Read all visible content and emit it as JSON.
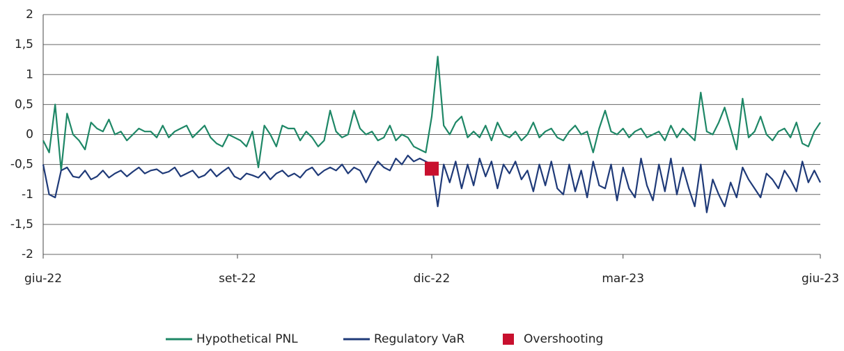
{
  "chart_data": {
    "type": "line",
    "x": [
      0,
      2,
      4,
      6,
      8,
      10,
      12,
      14,
      16,
      18,
      20,
      22,
      24,
      26,
      28,
      30,
      32,
      34,
      36,
      38,
      40,
      42,
      44,
      46,
      48,
      50,
      52,
      54,
      56,
      58,
      60,
      62,
      64,
      66,
      68,
      70,
      72,
      74,
      76,
      78,
      80,
      82,
      84,
      86,
      88,
      90,
      92,
      94,
      96,
      98,
      100,
      102,
      104,
      106,
      108,
      110,
      112,
      114,
      116,
      118,
      120,
      122,
      124,
      126,
      128,
      130,
      132,
      134,
      136,
      138,
      140,
      142,
      144,
      146,
      148,
      150,
      152,
      154,
      156,
      158,
      160,
      162,
      164,
      166,
      168,
      170,
      172,
      174,
      176,
      178,
      180,
      182,
      184,
      186,
      188,
      190,
      192,
      194,
      196,
      198,
      200,
      202,
      204,
      206,
      208,
      210,
      212,
      214,
      216,
      218,
      220,
      222,
      224,
      226,
      228,
      230,
      232,
      234,
      236,
      238,
      240,
      242,
      244,
      246,
      248,
      250,
      252,
      254,
      256,
      258,
      260
    ],
    "xlim": [
      0,
      260
    ],
    "xticks": [
      {
        "value": 0,
        "label": "giu-22"
      },
      {
        "value": 65,
        "label": "set-22"
      },
      {
        "value": 130,
        "label": "dic-22"
      },
      {
        "value": 194,
        "label": "mar-23"
      },
      {
        "value": 260,
        "label": "giu-23"
      }
    ],
    "ylim": [
      -2,
      2
    ],
    "yticks": [
      -2,
      {
        "value": -1.5,
        "label": "-1,5"
      },
      -1,
      {
        "value": -0.5,
        "label": "-0,5"
      },
      0,
      {
        "value": 0.5,
        "label": "0,5"
      },
      1,
      {
        "value": 1.5,
        "label": "1,5"
      },
      2
    ],
    "grid": true,
    "legend": "bottom",
    "series": [
      {
        "name": "Hypothetical PNL",
        "color": "#1e8766",
        "values": [
          -0.1,
          -0.3,
          0.5,
          -0.6,
          0.35,
          0.0,
          -0.1,
          -0.25,
          0.2,
          0.1,
          0.05,
          0.25,
          0.0,
          0.05,
          -0.1,
          0.0,
          0.1,
          0.05,
          0.05,
          -0.05,
          0.15,
          -0.05,
          0.05,
          0.1,
          0.15,
          -0.05,
          0.05,
          0.15,
          -0.05,
          -0.15,
          -0.2,
          0.0,
          -0.05,
          -0.1,
          -0.2,
          0.05,
          -0.55,
          0.15,
          0.0,
          -0.2,
          0.15,
          0.1,
          0.1,
          -0.1,
          0.05,
          -0.05,
          -0.2,
          -0.1,
          0.4,
          0.05,
          -0.05,
          0.0,
          0.4,
          0.1,
          0.0,
          0.05,
          -0.1,
          -0.05,
          0.15,
          -0.1,
          0.0,
          -0.05,
          -0.2,
          -0.25,
          -0.3,
          0.3,
          1.3,
          0.15,
          0.0,
          0.2,
          0.3,
          -0.05,
          0.05,
          -0.05,
          0.15,
          -0.1,
          0.2,
          0.0,
          -0.05,
          0.05,
          -0.1,
          0.0,
          0.2,
          -0.05,
          0.05,
          0.1,
          -0.05,
          -0.1,
          0.05,
          0.15,
          0.0,
          0.05,
          -0.3,
          0.1,
          0.4,
          0.05,
          0.0,
          0.1,
          -0.05,
          0.05,
          0.1,
          -0.05,
          0.0,
          0.05,
          -0.1,
          0.15,
          -0.05,
          0.1,
          0.0,
          -0.1,
          0.7,
          0.05,
          0.0,
          0.2,
          0.45,
          0.1,
          -0.25,
          0.6,
          -0.05,
          0.05,
          0.3,
          0.0,
          -0.1,
          0.05,
          0.1,
          -0.05,
          0.2,
          -0.15,
          -0.2,
          0.05,
          0.2
        ]
      },
      {
        "name": "Regulatory VaR",
        "color": "#1f3a78",
        "values": [
          -0.5,
          -1.0,
          -1.05,
          -0.6,
          -0.55,
          -0.7,
          -0.72,
          -0.6,
          -0.75,
          -0.7,
          -0.6,
          -0.72,
          -0.65,
          -0.6,
          -0.7,
          -0.62,
          -0.55,
          -0.65,
          -0.6,
          -0.58,
          -0.65,
          -0.62,
          -0.55,
          -0.7,
          -0.65,
          -0.6,
          -0.72,
          -0.68,
          -0.58,
          -0.7,
          -0.62,
          -0.55,
          -0.7,
          -0.75,
          -0.65,
          -0.68,
          -0.72,
          -0.62,
          -0.75,
          -0.65,
          -0.6,
          -0.7,
          -0.65,
          -0.72,
          -0.6,
          -0.55,
          -0.68,
          -0.6,
          -0.55,
          -0.6,
          -0.5,
          -0.65,
          -0.55,
          -0.6,
          -0.8,
          -0.6,
          -0.45,
          -0.55,
          -0.6,
          -0.4,
          -0.5,
          -0.35,
          -0.45,
          -0.4,
          -0.45,
          -0.5,
          -1.2,
          -0.5,
          -0.8,
          -0.45,
          -0.9,
          -0.5,
          -0.85,
          -0.4,
          -0.7,
          -0.45,
          -0.9,
          -0.5,
          -0.65,
          -0.45,
          -0.75,
          -0.6,
          -0.95,
          -0.5,
          -0.85,
          -0.45,
          -0.9,
          -1.0,
          -0.5,
          -0.95,
          -0.6,
          -1.05,
          -0.45,
          -0.85,
          -0.9,
          -0.5,
          -1.1,
          -0.55,
          -0.9,
          -1.05,
          -0.4,
          -0.85,
          -1.1,
          -0.5,
          -0.95,
          -0.4,
          -1.0,
          -0.55,
          -0.9,
          -1.2,
          -0.5,
          -1.3,
          -0.75,
          -1.0,
          -1.2,
          -0.8,
          -1.05,
          -0.55,
          -0.75,
          -0.9,
          -1.05,
          -0.65,
          -0.75,
          -0.9,
          -0.6,
          -0.75,
          -0.95,
          -0.45,
          -0.8,
          -0.6,
          -0.8
        ]
      },
      {
        "name": "Overshooting",
        "color": "#c8102e",
        "type": "scatter",
        "x": [
          130
        ],
        "values": [
          -0.57
        ]
      }
    ]
  }
}
